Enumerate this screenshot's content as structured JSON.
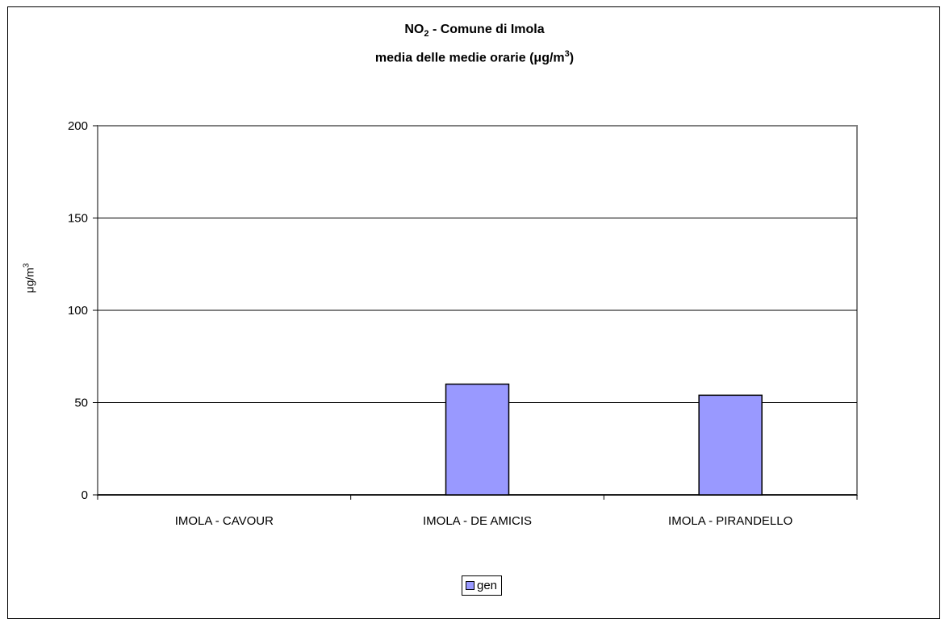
{
  "chart_data": {
    "type": "bar",
    "title_main": "NO",
    "title_sub": "2",
    "title_rest": " - Comune di Imola",
    "subtitle_main": "media delle medie orarie (",
    "subtitle_unit": "μg/m",
    "subtitle_sup": "3",
    "subtitle_end": ")",
    "ylabel_main": "μg/m",
    "ylabel_sup": "3",
    "xlabel": "",
    "categories": [
      "IMOLA - CAVOUR",
      "IMOLA - DE AMICIS",
      "IMOLA - PIRANDELLO"
    ],
    "series": [
      {
        "name": "gen",
        "values": [
          null,
          60,
          54
        ]
      }
    ],
    "ylim": [
      0,
      200
    ],
    "yticks": [
      0,
      50,
      100,
      150,
      200
    ],
    "grid": true,
    "legend_position": "bottom",
    "colors": {
      "bar": "#9999ff",
      "grid": "#000000",
      "axis": "#808080"
    }
  }
}
